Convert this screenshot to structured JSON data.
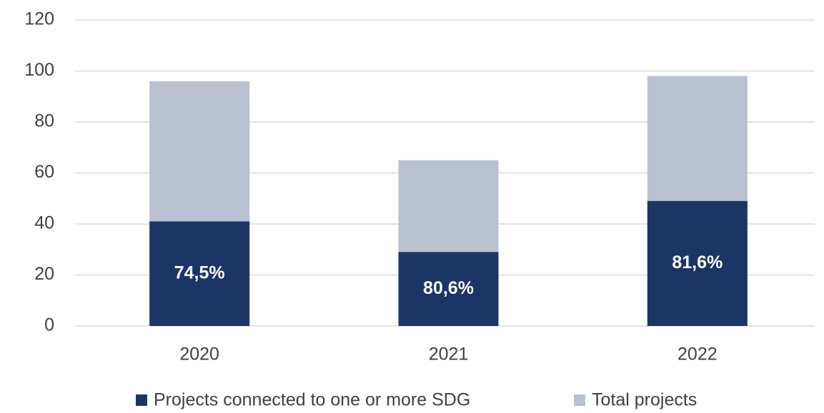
{
  "chart_data": {
    "type": "bar",
    "overlap": true,
    "categories": [
      "2020",
      "2021",
      "2022"
    ],
    "series": [
      {
        "name": "Total projects",
        "color": "#b9c0d0",
        "values": [
          96,
          65,
          98
        ]
      },
      {
        "name": "Projects connected to one or more SDG",
        "color": "#1b3566",
        "values": [
          41,
          29,
          49
        ]
      }
    ],
    "legend_order": [
      1,
      0
    ],
    "annotations": [
      "74,5%",
      "80,6%",
      "81,6%"
    ],
    "ylim": [
      0,
      120
    ],
    "yticks": [
      0,
      20,
      40,
      60,
      80,
      100,
      120
    ],
    "grid": true,
    "legend": "bottom"
  }
}
